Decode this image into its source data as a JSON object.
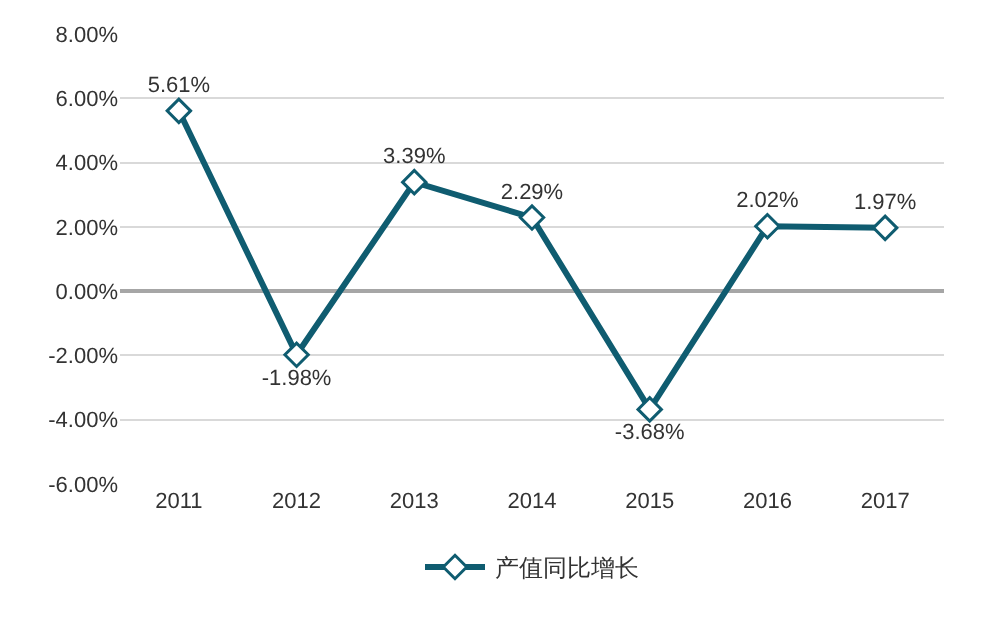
{
  "chart_data": {
    "type": "line",
    "categories": [
      "2011",
      "2012",
      "2013",
      "2014",
      "2015",
      "2016",
      "2017"
    ],
    "series": [
      {
        "name": "产值同比增长",
        "color": "#0f5c70",
        "values": [
          5.61,
          -1.98,
          3.39,
          2.29,
          -3.68,
          2.02,
          1.97
        ]
      }
    ],
    "value_labels": [
      "5.61%",
      "-1.98%",
      "3.39%",
      "2.29%",
      "-3.68%",
      "2.02%",
      "1.97%"
    ],
    "ylim": [
      -6,
      8
    ],
    "yticks": [
      {
        "value": 8,
        "label": "8.00%"
      },
      {
        "value": 6,
        "label": "6.00%"
      },
      {
        "value": 4,
        "label": "4.00%"
      },
      {
        "value": 2,
        "label": "2.00%"
      },
      {
        "value": 0,
        "label": "0.00%"
      },
      {
        "value": -2,
        "label": "-2.00%"
      },
      {
        "value": -4,
        "label": "-4.00%"
      },
      {
        "value": -6,
        "label": "-6.00%"
      }
    ],
    "grid": "y",
    "legend": "bottom",
    "marker": "diamond",
    "line_style": "solid"
  }
}
